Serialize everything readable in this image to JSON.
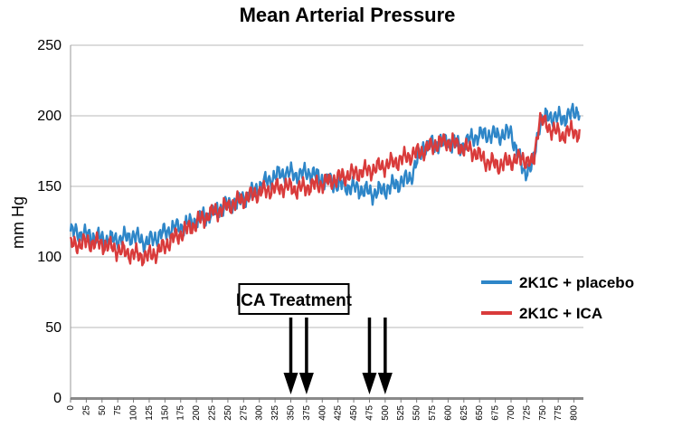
{
  "chart_data": {
    "type": "line",
    "title": "Mean Arterial Pressure",
    "xlabel": "",
    "ylabel": "mm Hg",
    "xlim": [
      0,
      815
    ],
    "ylim": [
      0,
      250
    ],
    "yticks": [
      0,
      50,
      100,
      150,
      200,
      250
    ],
    "xticks": [
      0,
      25,
      50,
      75,
      100,
      125,
      150,
      175,
      200,
      225,
      250,
      275,
      300,
      325,
      350,
      375,
      400,
      425,
      450,
      475,
      500,
      525,
      550,
      575,
      600,
      625,
      650,
      675,
      700,
      725,
      750,
      775,
      800
    ],
    "grid": true,
    "legend_position": "right",
    "series": [
      {
        "name": "2K1C + placebo",
        "color": "#2e86c8",
        "x": [
          0,
          20,
          40,
          60,
          80,
          100,
          120,
          140,
          160,
          180,
          200,
          220,
          240,
          260,
          280,
          300,
          320,
          340,
          360,
          380,
          400,
          420,
          440,
          460,
          480,
          500,
          520,
          540,
          560,
          580,
          600,
          620,
          640,
          660,
          680,
          700,
          720,
          735,
          745,
          760,
          780,
          800,
          810
        ],
        "y": [
          118,
          116,
          114,
          112,
          113,
          115,
          110,
          115,
          120,
          122,
          126,
          130,
          135,
          138,
          142,
          150,
          156,
          160,
          158,
          160,
          155,
          152,
          150,
          148,
          145,
          148,
          152,
          156,
          178,
          180,
          182,
          178,
          185,
          187,
          186,
          188,
          160,
          165,
          195,
          200,
          198,
          202,
          205
        ]
      },
      {
        "name": "2K1C + ICA",
        "color": "#d93b3b",
        "x": [
          0,
          20,
          40,
          60,
          80,
          100,
          120,
          140,
          160,
          180,
          200,
          220,
          240,
          260,
          280,
          300,
          320,
          340,
          360,
          380,
          400,
          420,
          440,
          460,
          480,
          500,
          520,
          540,
          560,
          580,
          600,
          620,
          640,
          660,
          680,
          700,
          720,
          735,
          745,
          760,
          780,
          800,
          810
        ],
        "y": [
          108,
          110,
          110,
          108,
          104,
          102,
          100,
          104,
          112,
          118,
          124,
          130,
          134,
          138,
          142,
          146,
          148,
          150,
          148,
          150,
          152,
          155,
          158,
          160,
          162,
          165,
          168,
          172,
          175,
          180,
          182,
          178,
          175,
          168,
          165,
          168,
          170,
          165,
          198,
          192,
          186,
          190,
          186
        ]
      }
    ],
    "annotation": {
      "label": "ICA Treatment",
      "arrow_x": [
        350,
        375,
        475,
        500
      ]
    }
  }
}
